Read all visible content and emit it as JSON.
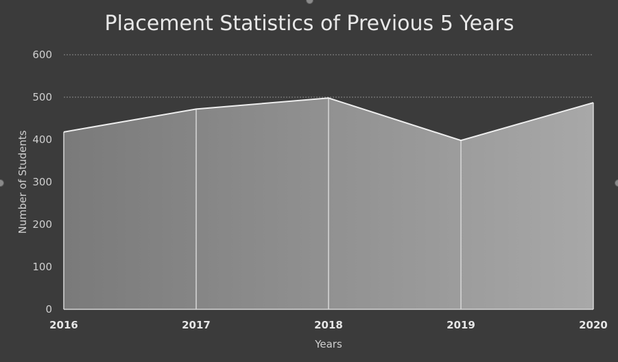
{
  "chart_data": {
    "type": "area",
    "title": "Placement Statistics of Previous 5 Years",
    "xlabel": "Years",
    "ylabel": "Number of Students",
    "categories": [
      "2016",
      "2017",
      "2018",
      "2019",
      "2020"
    ],
    "values": [
      418,
      472,
      498,
      398,
      487
    ],
    "yticks": [
      "0",
      "100",
      "200",
      "300",
      "400",
      "500",
      "600"
    ],
    "ylim": [
      0,
      600
    ],
    "grid": true,
    "legend": "none"
  },
  "colors": {
    "background": "#3b3b3b",
    "area_left": "#7a7a7a",
    "area_right": "#a8a8a8",
    "line": "#eeeeee",
    "gridline": "#8c8c8c"
  }
}
